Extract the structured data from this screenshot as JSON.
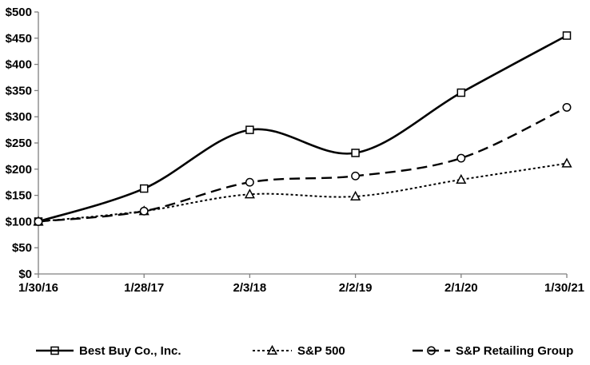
{
  "chart_data": {
    "type": "line",
    "title": "",
    "xlabel": "",
    "ylabel": "",
    "categories": [
      "1/30/16",
      "1/28/17",
      "2/3/18",
      "2/2/19",
      "2/1/20",
      "1/30/21"
    ],
    "y_tick_labels": [
      "$0",
      "$50",
      "$100",
      "$150",
      "$200",
      "$250",
      "$300",
      "$350",
      "$400",
      "$450",
      "$500"
    ],
    "ylim": [
      0,
      500
    ],
    "grid": false,
    "smoothed_lines": true,
    "legend_position": "bottom",
    "axis_color": "#808080",
    "line_color": "#000000",
    "background_color": "#ffffff",
    "series": [
      {
        "name": "Best Buy Co., Inc.",
        "values": [
          100,
          163,
          275,
          231,
          346,
          455
        ],
        "marker": "square",
        "line_style": "solid"
      },
      {
        "name": "S&P 500",
        "values": [
          100,
          120,
          152,
          148,
          180,
          211
        ],
        "marker": "triangle",
        "line_style": "dotted"
      },
      {
        "name": "S&P Retailing Group",
        "values": [
          100,
          120,
          175,
          187,
          221,
          318
        ],
        "marker": "circle",
        "line_style": "long-dash"
      }
    ]
  }
}
